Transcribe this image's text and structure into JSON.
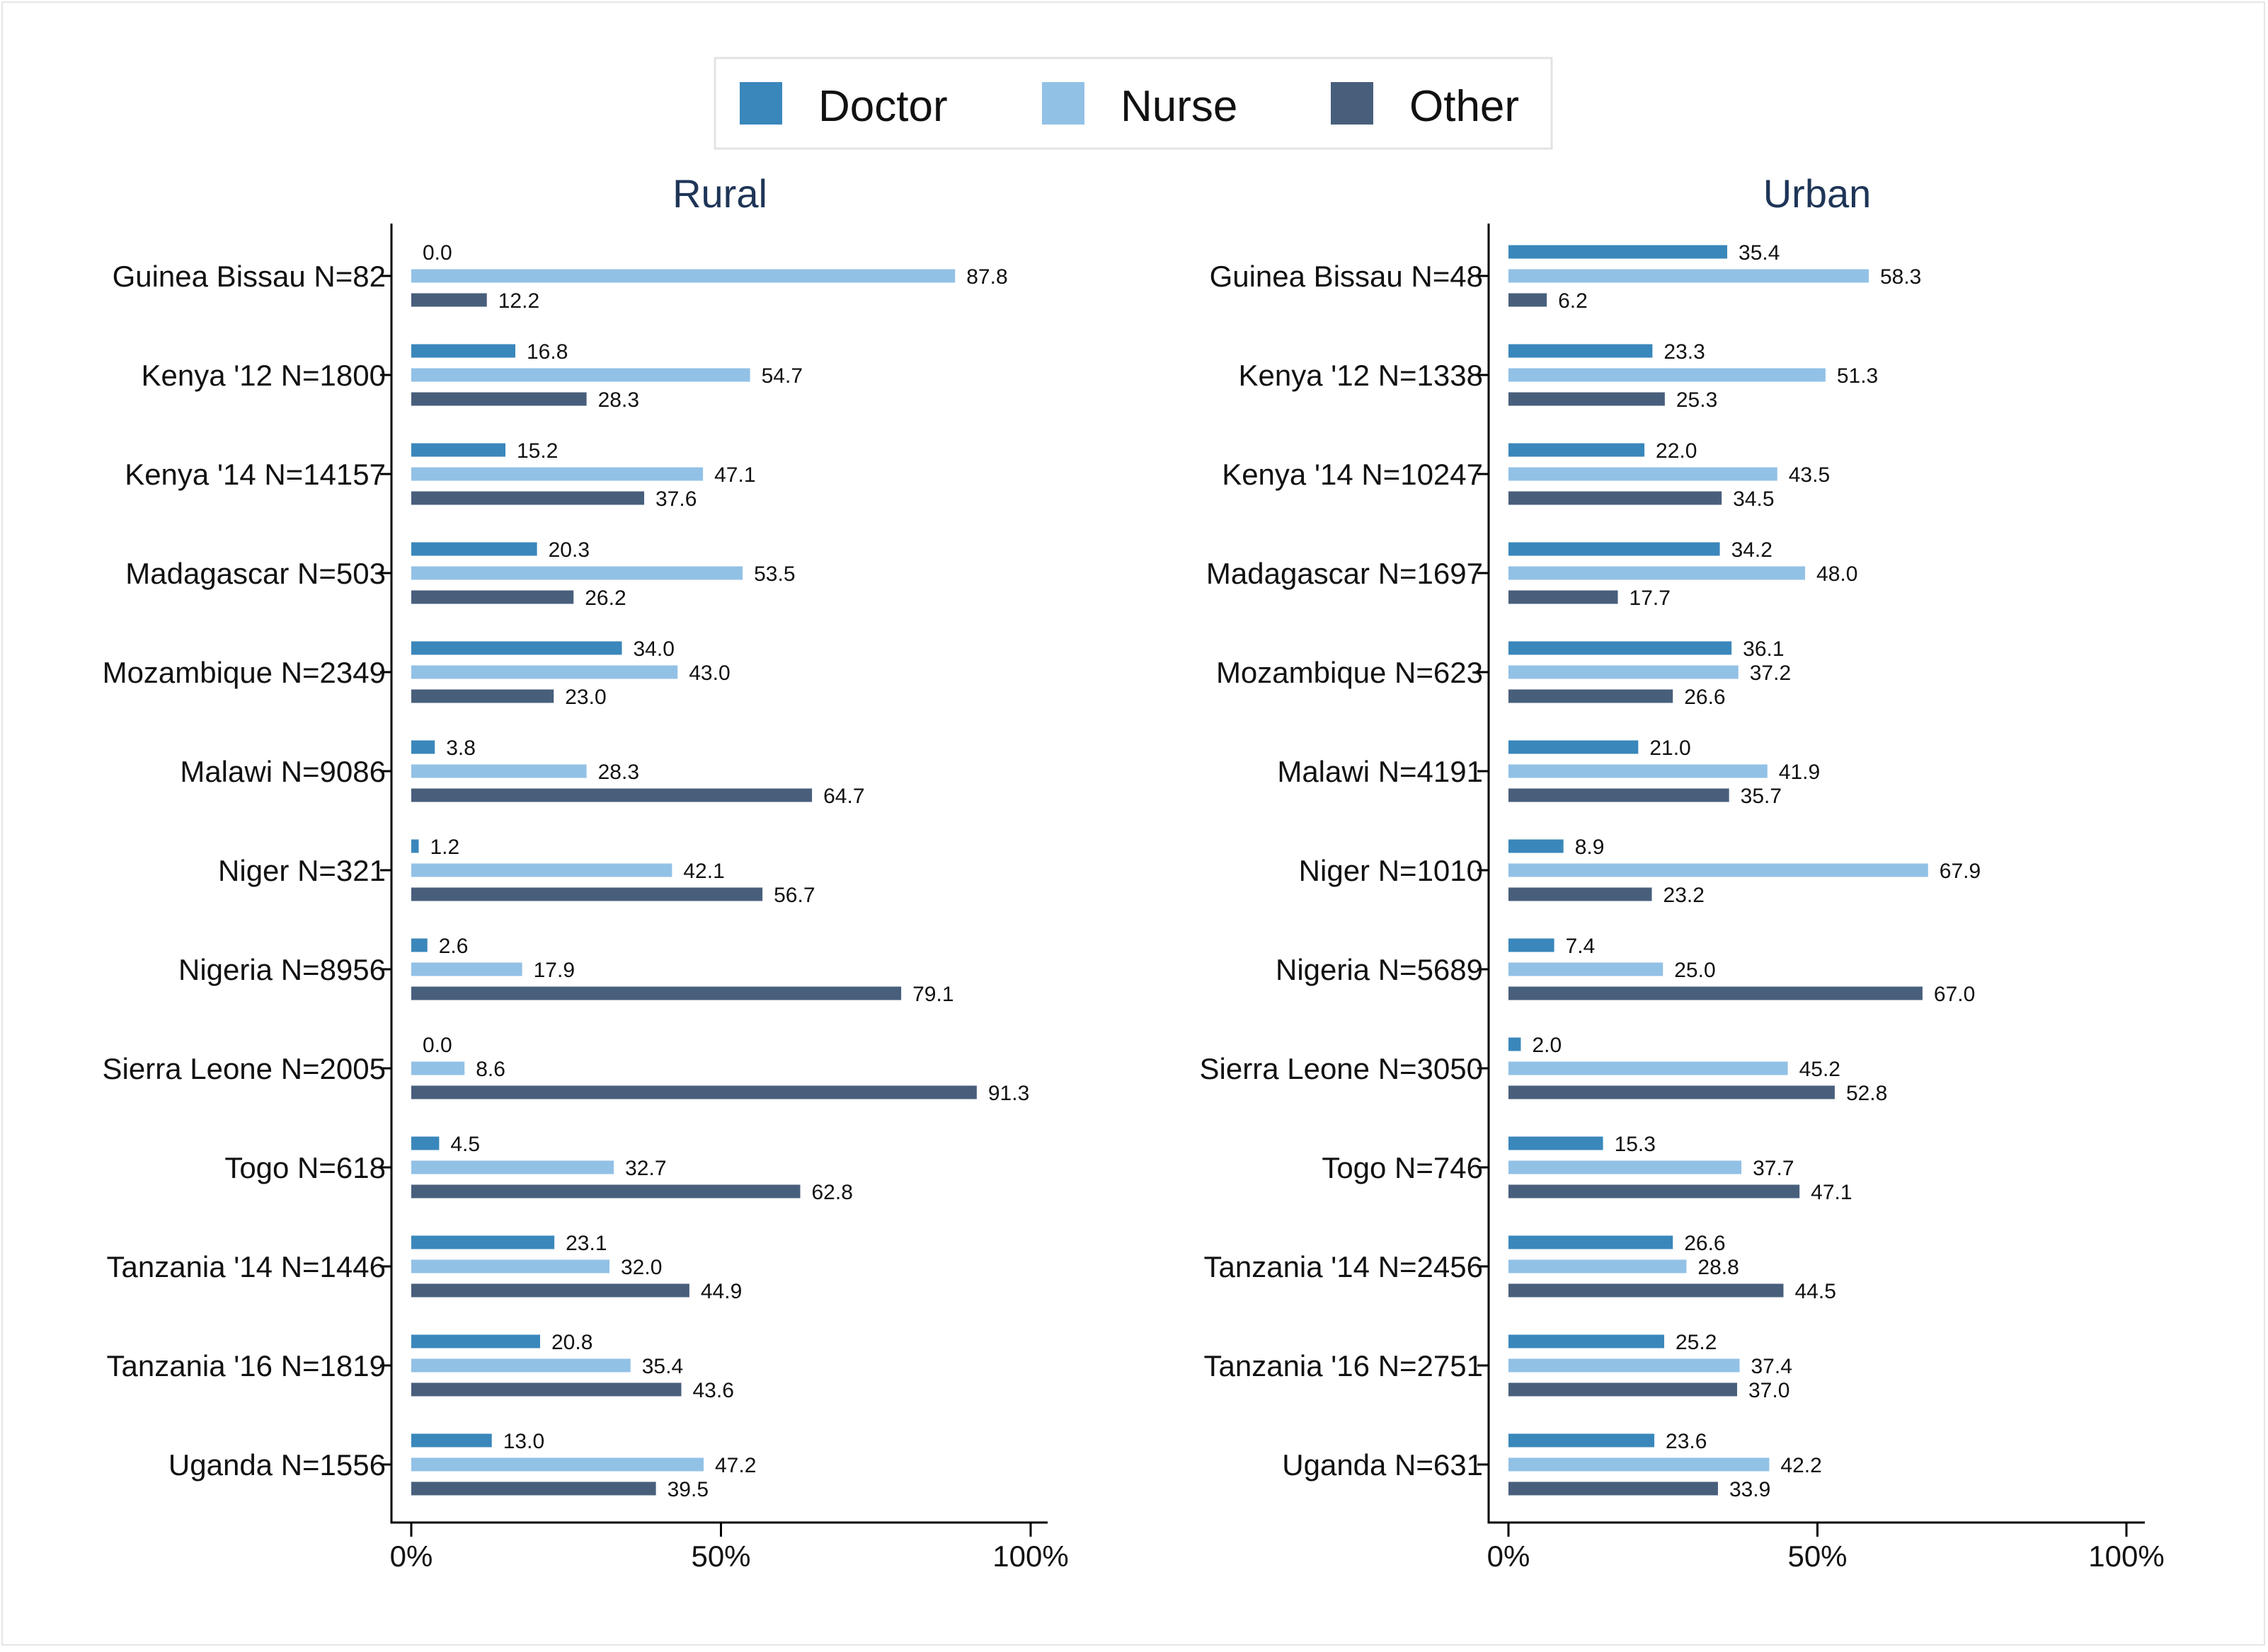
{
  "legend": {
    "items": [
      {
        "label": "Doctor",
        "color": "#3a87bb"
      },
      {
        "label": "Nurse",
        "color": "#92c1e6"
      },
      {
        "label": "Other",
        "color": "#485f7c"
      }
    ]
  },
  "chart_data": {
    "type": "bar",
    "orientation": "horizontal",
    "legend_position": "top-center",
    "grid": false,
    "xlim": [
      0,
      100
    ],
    "x_tick_labels": [
      "0%",
      "50%",
      "100%"
    ],
    "series_names": [
      "Doctor",
      "Nurse",
      "Other"
    ],
    "colors": {
      "Doctor": "#3a87bb",
      "Nurse": "#92c1e6",
      "Other": "#485f7c"
    },
    "panels": [
      {
        "title": "Rural",
        "categories": [
          "Guinea Bissau N=82",
          "Kenya '12 N=1800",
          "Kenya '14 N=14157",
          "Madagascar N=503",
          "Mozambique N=2349",
          "Malawi N=9086",
          "Niger N=321",
          "Nigeria N=8956",
          "Sierra Leone N=2005",
          "Togo N=618",
          "Tanzania '14 N=1446",
          "Tanzania '16 N=1819",
          "Uganda N=1556"
        ],
        "series": [
          {
            "name": "Doctor",
            "values": [
              0.0,
              16.8,
              15.2,
              20.3,
              34.0,
              3.8,
              1.2,
              2.6,
              0.0,
              4.5,
              23.1,
              20.8,
              13.0
            ]
          },
          {
            "name": "Nurse",
            "values": [
              87.8,
              54.7,
              47.1,
              53.5,
              43.0,
              28.3,
              42.1,
              17.9,
              8.6,
              32.7,
              32.0,
              35.4,
              47.2
            ]
          },
          {
            "name": "Other",
            "values": [
              12.2,
              28.3,
              37.6,
              26.2,
              23.0,
              64.7,
              56.7,
              79.1,
              91.3,
              62.8,
              44.9,
              43.6,
              39.5
            ]
          }
        ]
      },
      {
        "title": "Urban",
        "categories": [
          "Guinea Bissau N=48",
          "Kenya '12 N=1338",
          "Kenya '14 N=10247",
          "Madagascar N=1697",
          "Mozambique N=623",
          "Malawi N=4191",
          "Niger N=1010",
          "Nigeria N=5689",
          "Sierra Leone N=3050",
          "Togo N=746",
          "Tanzania '14 N=2456",
          "Tanzania '16 N=2751",
          "Uganda N=631"
        ],
        "series": [
          {
            "name": "Doctor",
            "values": [
              35.4,
              23.3,
              22.0,
              34.2,
              36.1,
              21.0,
              8.9,
              7.4,
              2.0,
              15.3,
              26.6,
              25.2,
              23.6
            ]
          },
          {
            "name": "Nurse",
            "values": [
              58.3,
              51.3,
              43.5,
              48.0,
              37.2,
              41.9,
              67.9,
              25.0,
              45.2,
              37.7,
              28.8,
              37.4,
              42.2
            ]
          },
          {
            "name": "Other",
            "values": [
              6.2,
              25.3,
              34.5,
              17.7,
              26.6,
              35.7,
              23.2,
              67.0,
              52.8,
              47.1,
              44.5,
              37.0,
              33.9
            ]
          }
        ]
      }
    ]
  }
}
